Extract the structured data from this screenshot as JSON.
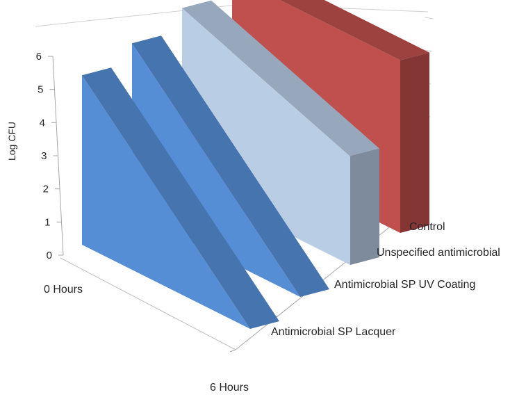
{
  "chart_data": {
    "type": "area",
    "view": "3d-ribbons",
    "categories": [
      "0 Hours",
      "6 Hours"
    ],
    "ylabel": "Log CFU",
    "ylim": [
      0,
      6
    ],
    "yticks": [
      "0",
      "1",
      "2",
      "3",
      "4",
      "5",
      "6"
    ],
    "grid": false,
    "series": [
      {
        "name": "Antimicrobial SP Lacquer",
        "values": [
          5.3,
          0
        ],
        "color": "#558ed5"
      },
      {
        "name": "Antimicrobial SP UV Coating",
        "values": [
          5.3,
          0
        ],
        "color": "#558ed5"
      },
      {
        "name": "Unspecified antimicrobial",
        "values": [
          5.4,
          3.4
        ],
        "color": "#b9cde5"
      },
      {
        "name": "Control",
        "values": [
          5.4,
          5.4
        ],
        "color": "#c0504d"
      }
    ]
  }
}
